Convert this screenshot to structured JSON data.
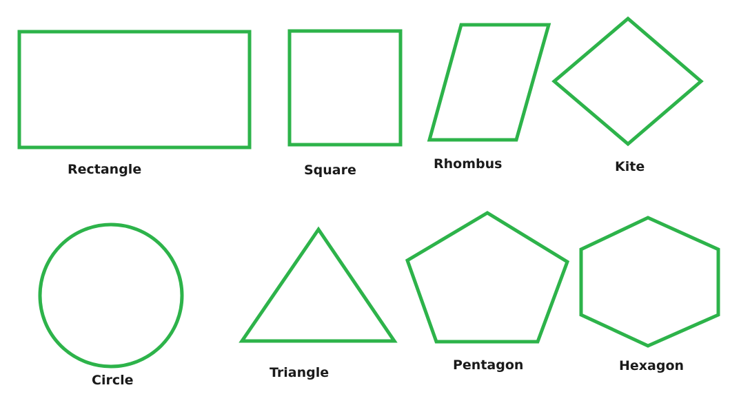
{
  "stroke_color": "#2db34a",
  "shapes": {
    "rectangle": {
      "label": "Rectangle",
      "icon": "rectangle"
    },
    "square": {
      "label": "Square",
      "icon": "square"
    },
    "rhombus": {
      "label": "Rhombus",
      "icon": "rhombus"
    },
    "kite": {
      "label": "Kite",
      "icon": "kite"
    },
    "circle": {
      "label": "Circle",
      "icon": "circle"
    },
    "triangle": {
      "label": "Triangle",
      "icon": "triangle"
    },
    "pentagon": {
      "label": "Pentagon",
      "icon": "pentagon"
    },
    "hexagon": {
      "label": "Hexagon",
      "icon": "hexagon"
    }
  }
}
